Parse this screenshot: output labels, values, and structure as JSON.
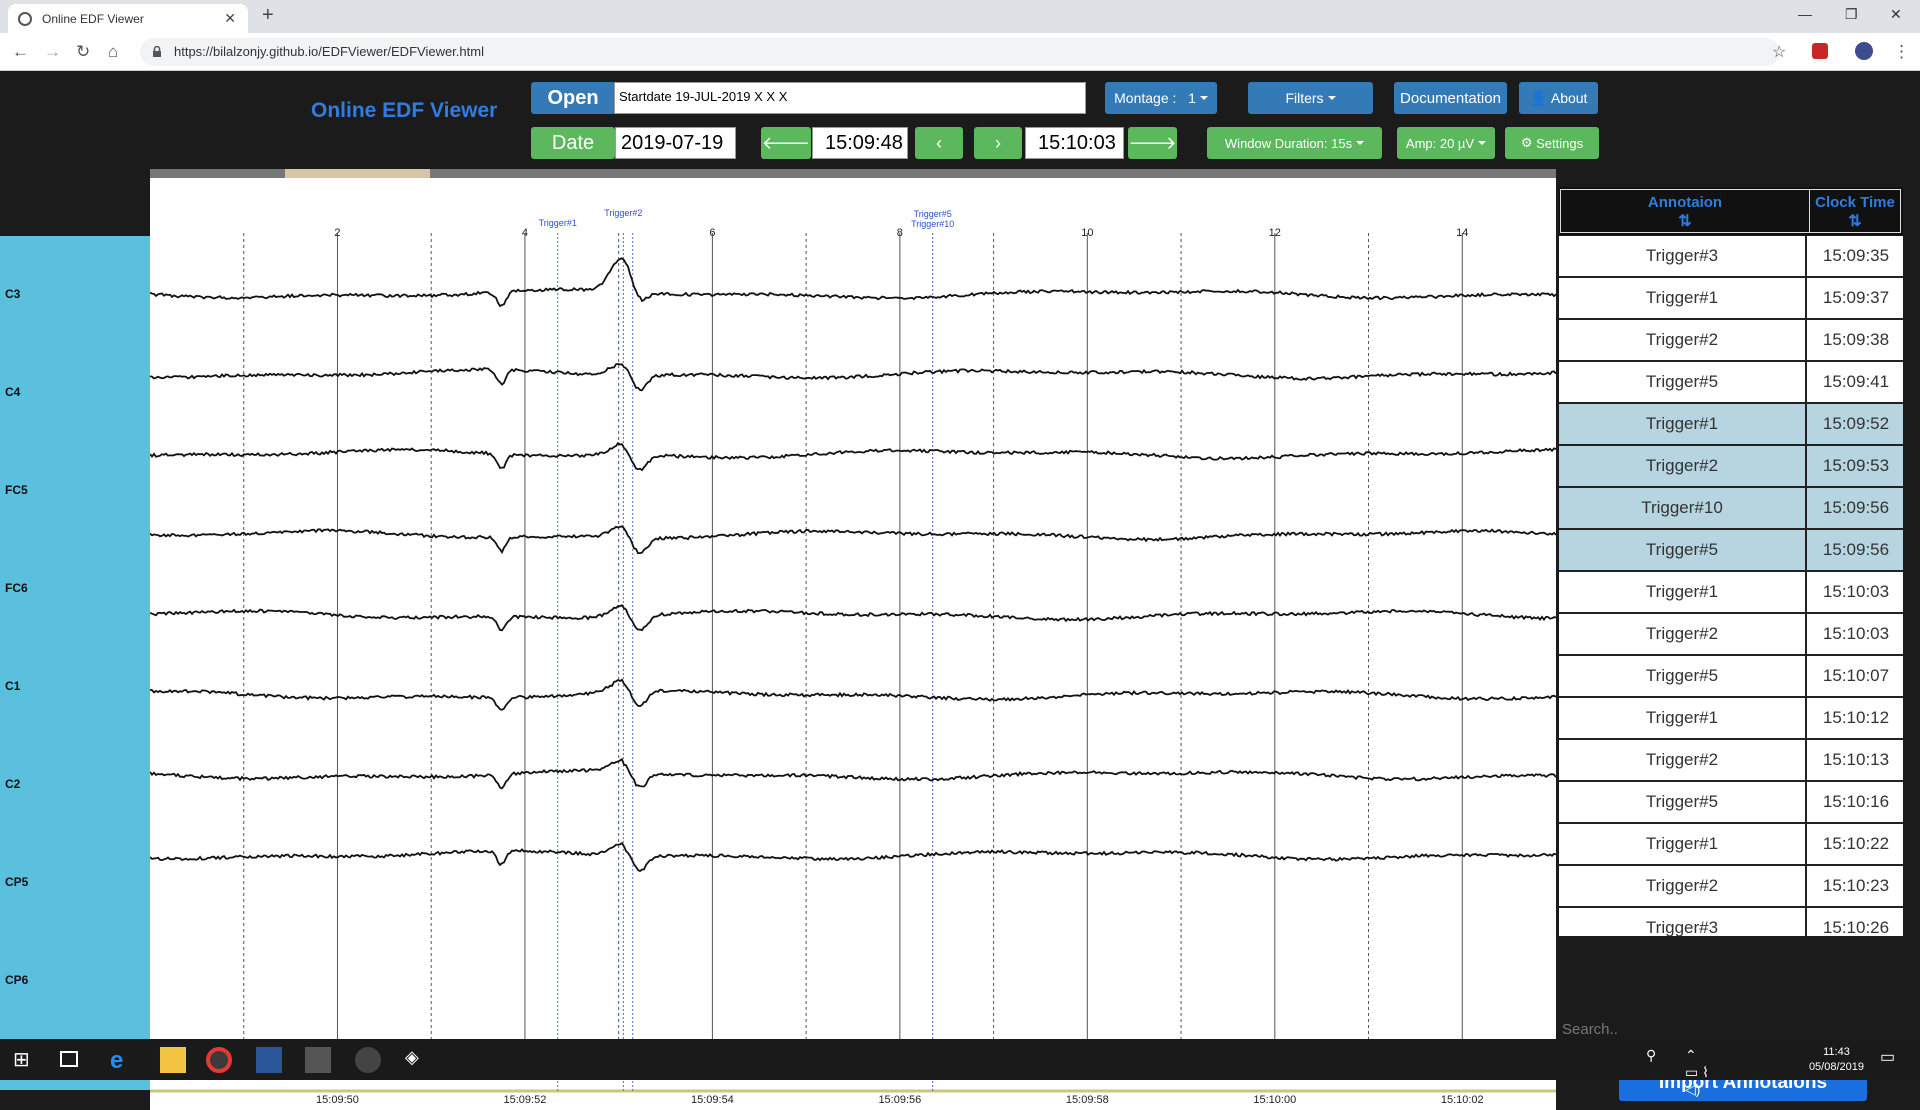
{
  "browser": {
    "tab_title": "Online EDF Viewer",
    "url": "https://bilalzonjy.github.io/EDFViewer/EDFViewer.html"
  },
  "app": {
    "title": "Online EDF Viewer",
    "open_label": "Open",
    "file_info": "Startdate 19-JUL-2019 X X X",
    "date_label": "Date",
    "date_value": "2019-07-19",
    "start_time": "15:09:48",
    "end_time": "15:10:03",
    "montage_label": "Montage :",
    "montage_value": "1",
    "filters_label": "Filters",
    "documentation_label": "Documentation",
    "about_label": "About",
    "window_duration_label": "Window Duration: 15s",
    "amp_label": "Amp: 20 µV",
    "settings_label": "Settings"
  },
  "channels": [
    "C3",
    "C4",
    "FC5",
    "FC6",
    "C1",
    "C2",
    "CP5",
    "CP6"
  ],
  "plot": {
    "second_ticks": [
      "2",
      "4",
      "6",
      "8",
      "10",
      "12",
      "14"
    ],
    "time_ticks": [
      "15:09:50",
      "15:09:52",
      "15:09:54",
      "15:09:56",
      "15:09:58",
      "15:10:00",
      "15:10:02"
    ],
    "trigger_markers": [
      {
        "label": "Trigger#1",
        "t": 3.35
      },
      {
        "label": "Trigger#2",
        "t": 4.1
      },
      {
        "label": "Trigger#5",
        "t": 8.35
      },
      {
        "label": "Trigger#10",
        "t": 8.35
      }
    ]
  },
  "annotations": {
    "col_annotation": "Annotaion",
    "col_clock": "Clock Time",
    "rows": [
      {
        "name": "Trigger#3",
        "time": "15:09:35",
        "selected": false
      },
      {
        "name": "Trigger#1",
        "time": "15:09:37",
        "selected": false
      },
      {
        "name": "Trigger#2",
        "time": "15:09:38",
        "selected": false
      },
      {
        "name": "Trigger#5",
        "time": "15:09:41",
        "selected": false
      },
      {
        "name": "Trigger#1",
        "time": "15:09:52",
        "selected": true
      },
      {
        "name": "Trigger#2",
        "time": "15:09:53",
        "selected": true
      },
      {
        "name": "Trigger#10",
        "time": "15:09:56",
        "selected": true
      },
      {
        "name": "Trigger#5",
        "time": "15:09:56",
        "selected": true
      },
      {
        "name": "Trigger#1",
        "time": "15:10:03",
        "selected": false
      },
      {
        "name": "Trigger#2",
        "time": "15:10:03",
        "selected": false
      },
      {
        "name": "Trigger#5",
        "time": "15:10:07",
        "selected": false
      },
      {
        "name": "Trigger#1",
        "time": "15:10:12",
        "selected": false
      },
      {
        "name": "Trigger#2",
        "time": "15:10:13",
        "selected": false
      },
      {
        "name": "Trigger#5",
        "time": "15:10:16",
        "selected": false
      },
      {
        "name": "Trigger#1",
        "time": "15:10:22",
        "selected": false
      },
      {
        "name": "Trigger#2",
        "time": "15:10:23",
        "selected": false
      },
      {
        "name": "Trigger#3",
        "time": "15:10:26",
        "selected": false
      }
    ],
    "search_placeholder": "Search..",
    "import_label": "Import Annotaions"
  },
  "taskbar": {
    "time": "11:43",
    "date": "05/08/2019"
  },
  "colors": {
    "accent_blue": "#337ab7",
    "accent_green": "#5cb85c",
    "channel_bg": "#5bc0de",
    "title_blue": "#2f7de1",
    "selected_row": "#b7d4e1"
  }
}
